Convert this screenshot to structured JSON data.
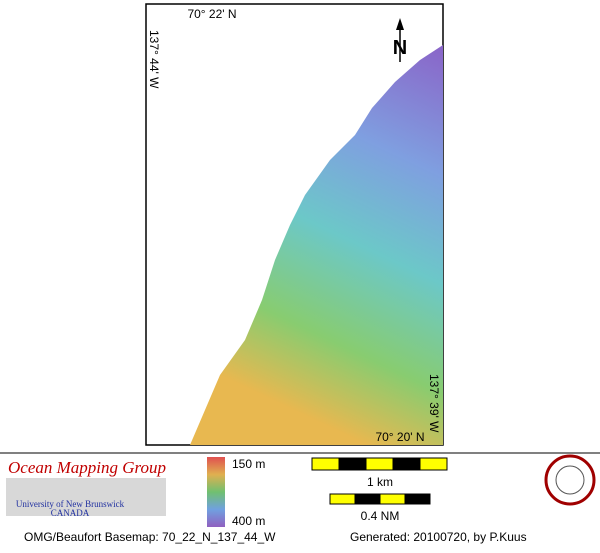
{
  "map": {
    "top_latitude": "70° 22' N",
    "left_longitude": "137° 44' W",
    "north_arrow": "N",
    "right_longitude": "137° 39' W",
    "bottom_latitude": "70° 20' N"
  },
  "legend": {
    "organization": "Ocean Mapping Group",
    "university": "University of New Brunswick",
    "country": "CANADA",
    "depth_min": "150 m",
    "depth_max": "400 m",
    "scale_km": "1 km",
    "scale_nm": "0.4 NM"
  },
  "footer": {
    "basemap": "OMG/Beaufort Basemap: 70_22_N_137_44_W",
    "generated": "Generated: 20100720, by P.Kuus"
  }
}
